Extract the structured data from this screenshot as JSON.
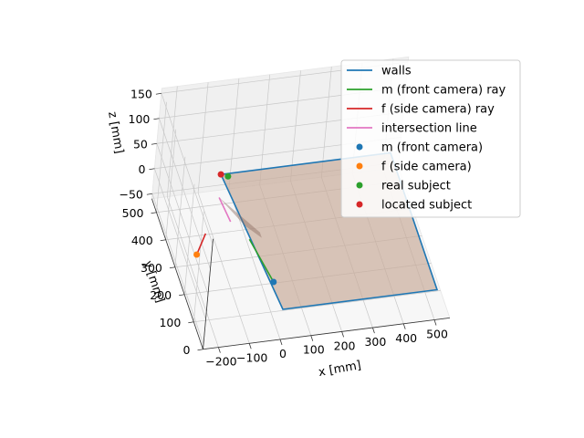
{
  "chart_data": {
    "type": "line",
    "projection": "3d",
    "axes": {
      "x": {
        "label": "x [mm]",
        "ticks": [
          "−200",
          "−100",
          "0",
          "100",
          "200",
          "300",
          "400",
          "500"
        ]
      },
      "y": {
        "label": "y [mm]",
        "ticks": [
          "0",
          "100",
          "200",
          "300",
          "400",
          "500"
        ]
      },
      "z": {
        "label": "z [mm]",
        "ticks": [
          "−50",
          "0",
          "50",
          "100",
          "150"
        ]
      }
    },
    "grid": true,
    "legend_position": "top-right",
    "legend": [
      {
        "label": "walls",
        "kind": "line",
        "color": "#1f77b4"
      },
      {
        "label": "m (front camera) ray",
        "kind": "line",
        "color": "#2ca02c"
      },
      {
        "label": "f (side camera) ray",
        "kind": "line",
        "color": "#d62728"
      },
      {
        "label": "intersection line",
        "kind": "line",
        "color": "#e377c2"
      },
      {
        "label": "m (front camera)",
        "kind": "point",
        "color": "#1f77b4"
      },
      {
        "label": "f (side camera)",
        "kind": "point",
        "color": "#ff7f0e"
      },
      {
        "label": "real subject",
        "kind": "point",
        "color": "#2ca02c"
      },
      {
        "label": "located subject",
        "kind": "point",
        "color": "#d62728"
      }
    ],
    "series": [
      {
        "name": "walls",
        "kind": "polygon",
        "color": "#1f77b4",
        "points": [
          [
            -50,
            500,
            0
          ],
          [
            500,
            500,
            0
          ],
          [
            500,
            0,
            0
          ],
          [
            0,
            0,
            0
          ]
        ]
      },
      {
        "name": "m (front camera) ray",
        "kind": "line",
        "color": "#2ca02c",
        "points": [
          [
            0,
            100,
            0
          ],
          [
            -30,
            260,
            0
          ]
        ]
      },
      {
        "name": "f (side camera) ray",
        "kind": "line",
        "color": "#d62728",
        "points": [
          [
            -210,
            230,
            0
          ],
          [
            -160,
            300,
            0
          ]
        ]
      },
      {
        "name": "intersection line",
        "kind": "line",
        "color": "#e377c2",
        "points": [
          [
            -80,
            420,
            0
          ],
          [
            -70,
            330,
            0
          ]
        ]
      },
      {
        "name": "m (front camera)",
        "kind": "point",
        "color": "#1f77b4",
        "points": [
          [
            0,
            100,
            0
          ]
        ]
      },
      {
        "name": "f (side camera)",
        "kind": "point",
        "color": "#ff7f0e",
        "points": [
          [
            -210,
            230,
            0
          ]
        ]
      },
      {
        "name": "real subject",
        "kind": "point",
        "color": "#2ca02c",
        "points": [
          [
            -30,
            490,
            0
          ]
        ]
      },
      {
        "name": "located subject",
        "kind": "point",
        "color": "#d62728",
        "points": [
          [
            -50,
            500,
            0
          ]
        ]
      }
    ]
  }
}
